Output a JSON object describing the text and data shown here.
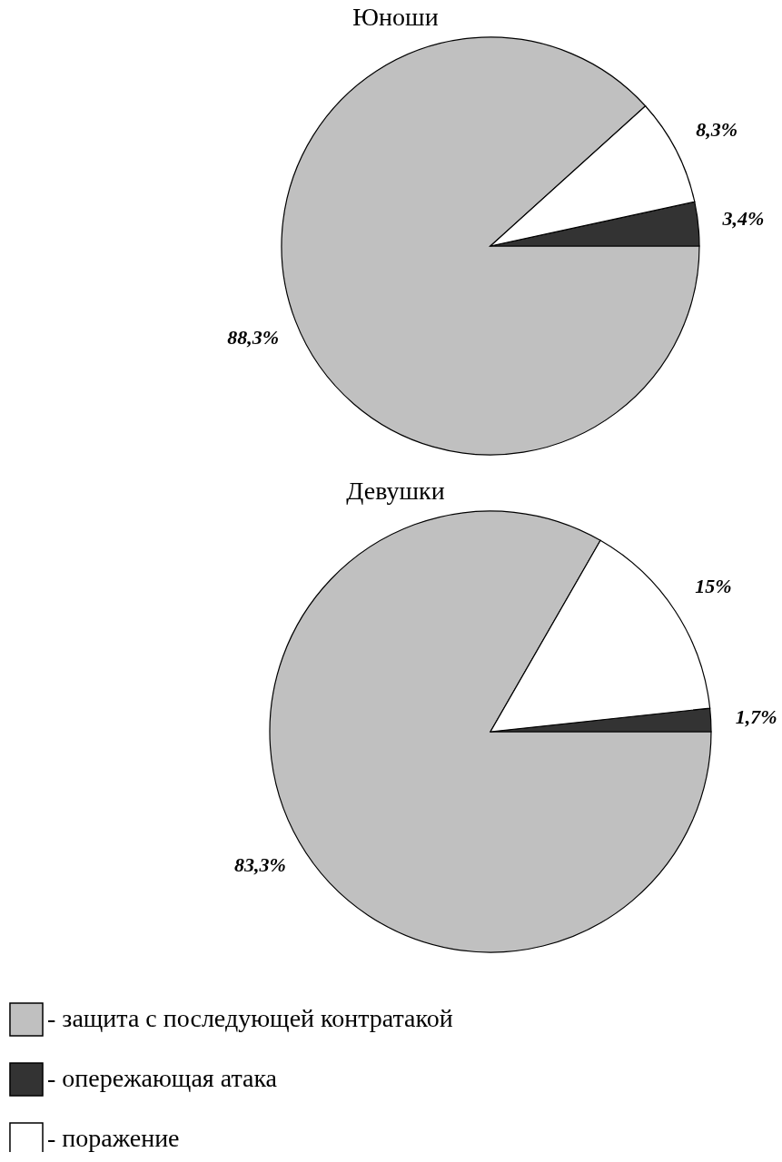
{
  "chart_data": [
    {
      "type": "pie",
      "title": "Юноши",
      "categories": [
        null,
        null,
        null
      ],
      "values": [
        88.3,
        3.4,
        8.3
      ],
      "colors": [
        "#c0c0c0",
        "#333333",
        "#ffffff"
      ],
      "value_labels": [
        "88,3%",
        "3,4%",
        "8,3%"
      ],
      "legend": false
    },
    {
      "type": "pie",
      "title": "Девушки",
      "categories": [
        "- защита с последующей контратакой",
        "- опережающая атака",
        "- поражение"
      ],
      "values": [
        83.3,
        1.7,
        15
      ],
      "colors": [
        "#c0c0c0",
        "#333333",
        "#ffffff"
      ],
      "value_labels": [
        "83,3%",
        "1,7%",
        "15%"
      ],
      "legend": "bottom left"
    }
  ]
}
